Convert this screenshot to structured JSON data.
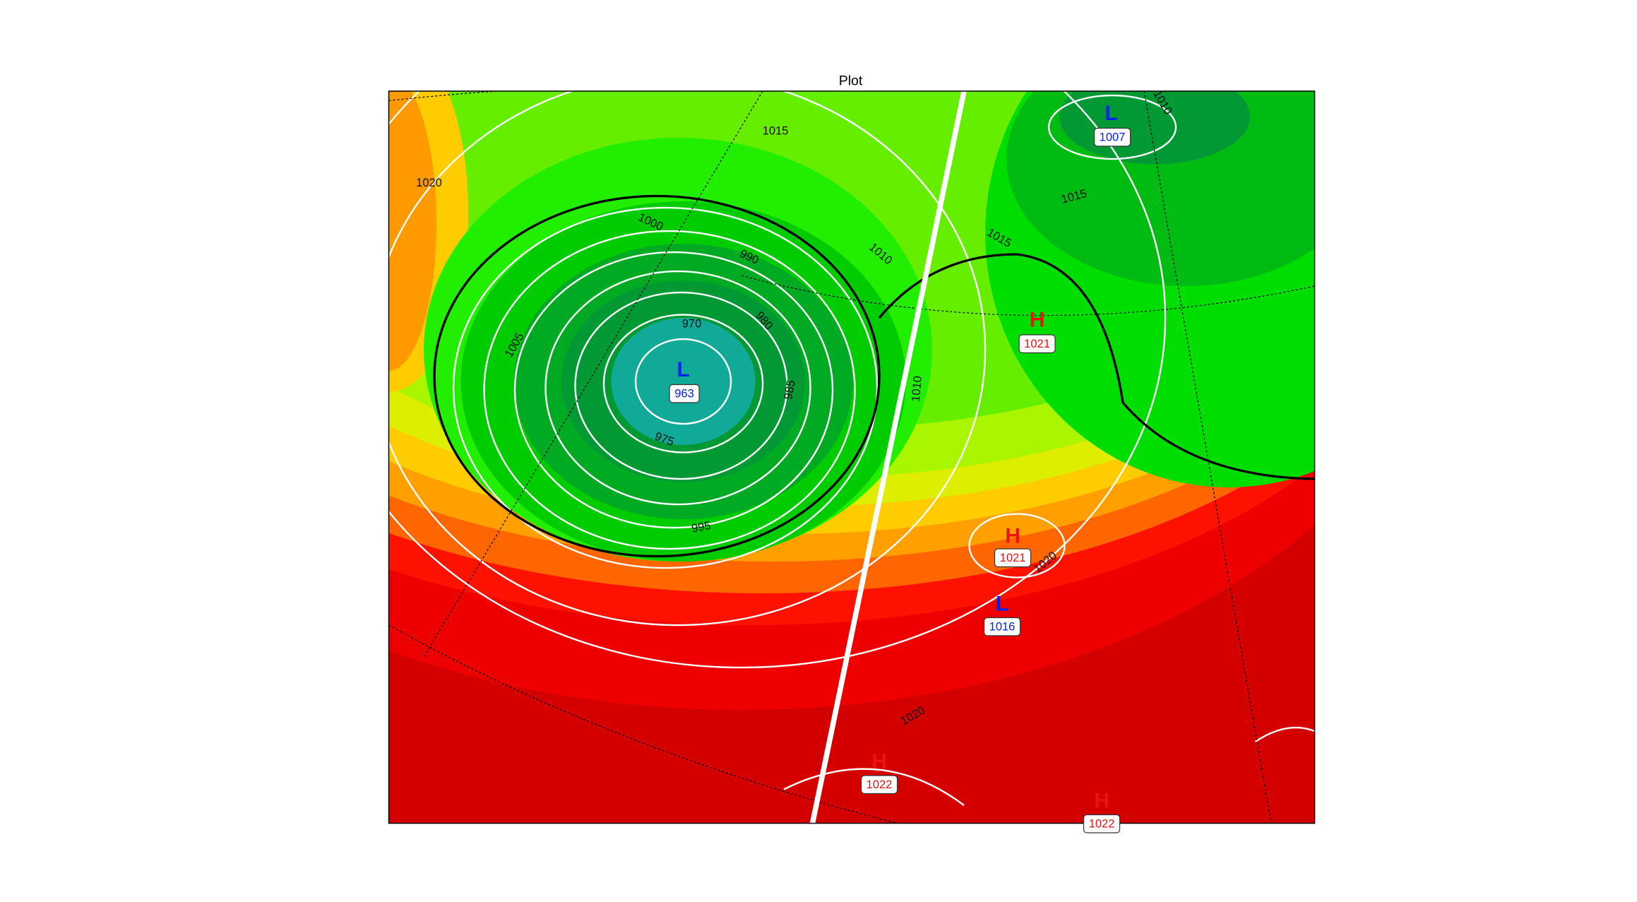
{
  "title": "Plot",
  "centers": [
    {
      "symbol": "L",
      "pressure": "963"
    },
    {
      "symbol": "L",
      "pressure": "1007"
    },
    {
      "symbol": "H",
      "pressure": "1021"
    },
    {
      "symbol": "H",
      "pressure": "1021"
    },
    {
      "symbol": "L",
      "pressure": "1016"
    },
    {
      "symbol": "H",
      "pressure": "1022"
    },
    {
      "symbol": "H",
      "pressure": "1022"
    }
  ],
  "contour_labels": [
    "1015",
    "1020",
    "1000",
    "990",
    "1010",
    "1015",
    "1015",
    "1010",
    "970",
    "980",
    "1005",
    "985",
    "1010",
    "975",
    "995",
    "1020",
    "1020"
  ]
}
